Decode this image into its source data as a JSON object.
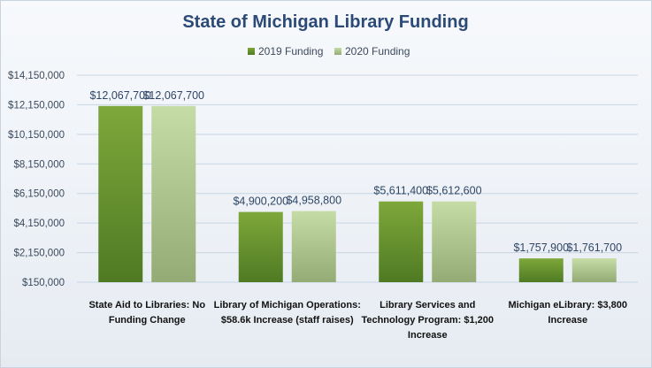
{
  "chart_data": {
    "type": "bar",
    "title": "State of Michigan Library Funding",
    "legend_position": "top",
    "grid": true,
    "ylim": [
      150000,
      14150000
    ],
    "yticks": [
      150000,
      2150000,
      4150000,
      6150000,
      8150000,
      10150000,
      12150000,
      14150000
    ],
    "ytick_labels": [
      "$150,000",
      "$2,150,000",
      "$4,150,000",
      "$6,150,000",
      "$8,150,000",
      "$10,150,000",
      "$12,150,000",
      "$14,150,000"
    ],
    "categories": [
      [
        "State Aid to Libraries: No",
        "Funding Change"
      ],
      [
        "Library of Michigan Operations:",
        "$58.6k Increase (staff raises)"
      ],
      [
        "Library Services and",
        "Technology Program: $1,200",
        "Increase"
      ],
      [
        "Michigan eLibrary: $3,800",
        "Increase"
      ]
    ],
    "series": [
      {
        "name": "2019 Funding",
        "color_top": "#7ea83a",
        "color_bottom": "#4f7a23",
        "values": [
          12067700,
          4900200,
          5611400,
          1757900
        ],
        "labels": [
          "$12,067,700",
          "$4,900,200",
          "$5,611,400",
          "$1,757,900"
        ]
      },
      {
        "name": "2020 Funding",
        "color_top": "#c6dca6",
        "color_bottom": "#94ab75",
        "values": [
          12067700,
          4958800,
          5612600,
          1761700
        ],
        "labels": [
          "$12,067,700",
          "$4,958,800",
          "$5,612,600",
          "$1,761,700"
        ]
      }
    ]
  }
}
